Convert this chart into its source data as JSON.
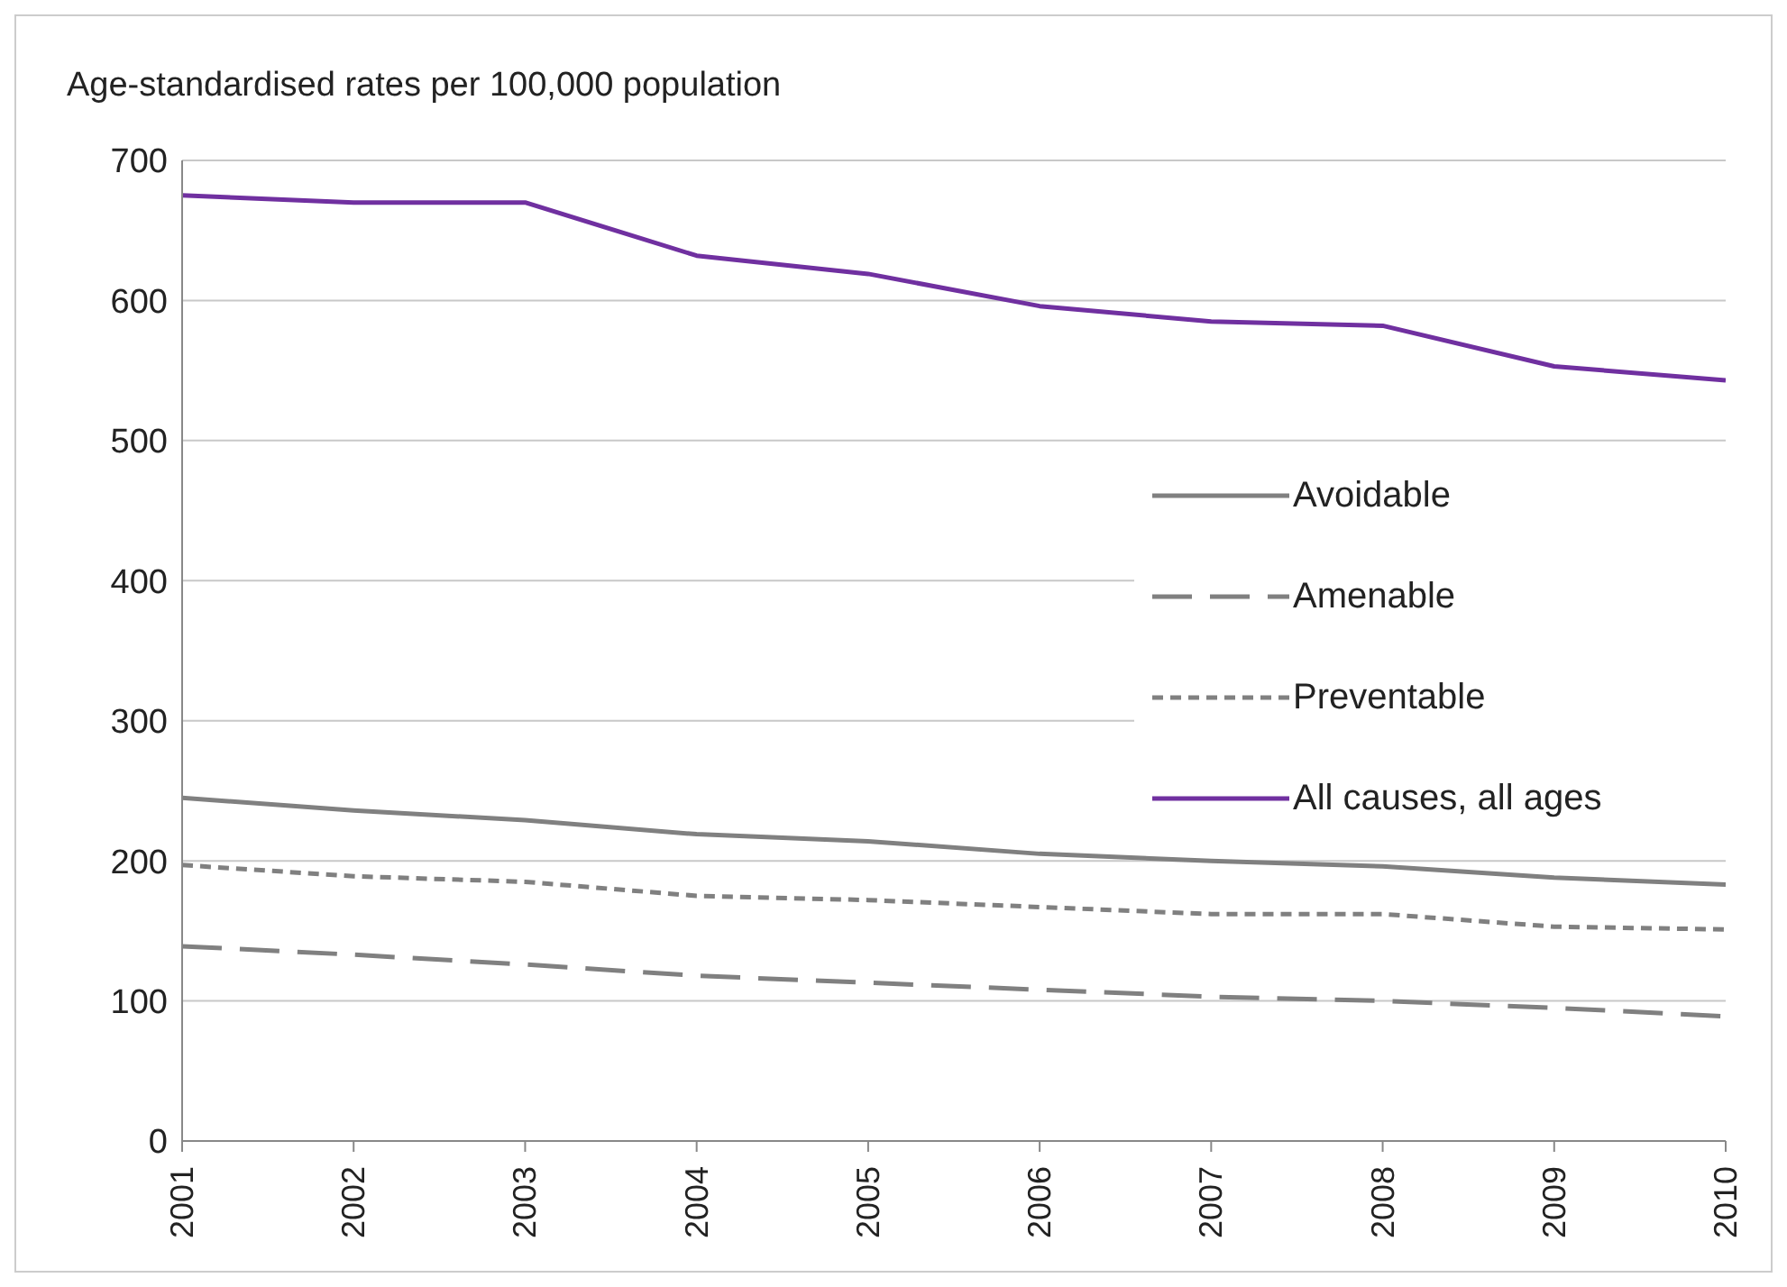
{
  "chart_data": {
    "type": "line",
    "ylabel": "Age-standardised rates per 100,000 population",
    "categories": [
      "2001",
      "2002",
      "2003",
      "2004",
      "2005",
      "2006",
      "2007",
      "2008",
      "2009",
      "2010"
    ],
    "series": [
      {
        "name": "Avoidable",
        "color": "#808080",
        "line_style": "solid",
        "values": [
          245,
          236,
          229,
          219,
          214,
          205,
          200,
          196,
          188,
          183
        ]
      },
      {
        "name": "Amenable",
        "color": "#808080",
        "line_style": "dashed",
        "values": [
          139,
          133,
          126,
          118,
          113,
          108,
          103,
          100,
          95,
          89
        ]
      },
      {
        "name": "Preventable",
        "color": "#808080",
        "line_style": "dotted",
        "values": [
          197,
          189,
          185,
          175,
          172,
          167,
          162,
          162,
          153,
          151
        ]
      },
      {
        "name": "All causes, all ages",
        "color": "#7030a0",
        "line_style": "solid",
        "values": [
          675,
          670,
          670,
          632,
          619,
          596,
          585,
          582,
          553,
          543
        ]
      }
    ],
    "ylim": [
      0,
      700
    ],
    "yticks": [
      0,
      100,
      200,
      300,
      400,
      500,
      600,
      700
    ],
    "grid": "y",
    "legend": "right",
    "marker": "none"
  }
}
